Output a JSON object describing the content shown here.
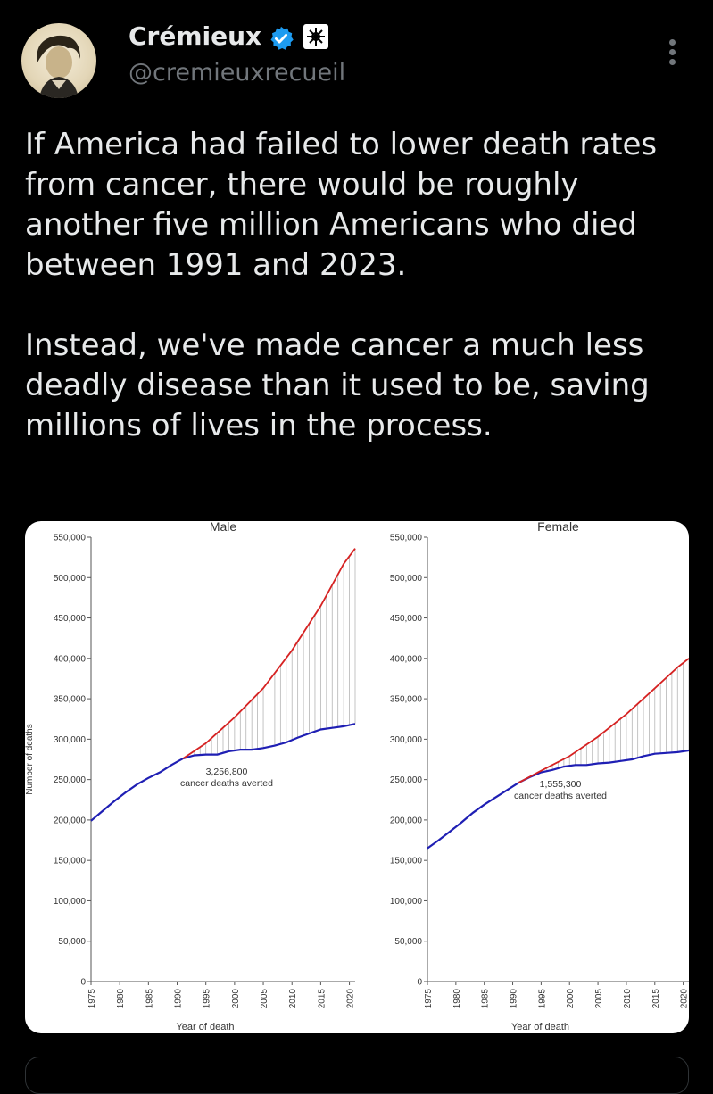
{
  "author": {
    "name": "Crémieux",
    "handle": "@cremieuxrecueil",
    "verified_color": "#1d9bf0"
  },
  "icons": {
    "more": "more-options-icon",
    "verified": "verified-badge-icon",
    "affiliation": "affiliation-badge-icon"
  },
  "tweet": {
    "paragraphs": [
      "If America had failed to lower death rates from cancer, there would be roughly another five million Americans who died between 1991 and 2023.",
      "Instead, we've made cancer a much less deadly disease than it used to be, saving millions of lives in the process."
    ]
  },
  "chart_data": [
    {
      "type": "line",
      "title": "Male",
      "xlabel": "Year of death",
      "ylabel": "Number of deaths",
      "xlim": [
        1975,
        2021
      ],
      "ylim": [
        0,
        550000
      ],
      "xticks": [
        1975,
        1980,
        1985,
        1990,
        1995,
        2000,
        2005,
        2010,
        2015,
        2020
      ],
      "yticks": [
        "0",
        "50,000",
        "100,000",
        "150,000",
        "200,000",
        "250,000",
        "300,000",
        "350,000",
        "400,000",
        "450,000",
        "500,000",
        "550,000"
      ],
      "annotation": [
        "3,256,800",
        "cancer deaths averted"
      ],
      "series": [
        {
          "color": "#1f1fb4",
          "x": [
            1975,
            1977,
            1979,
            1981,
            1983,
            1985,
            1987,
            1989,
            1990,
            1991,
            1993,
            1995,
            1997,
            1999,
            2001,
            2003,
            2005,
            2007,
            2009,
            2011,
            2013,
            2015,
            2017,
            2019,
            2021
          ],
          "y": [
            199000,
            211000,
            223000,
            234000,
            244000,
            252000,
            259000,
            268000,
            272000,
            276000,
            280000,
            281000,
            281000,
            285000,
            287000,
            287000,
            289000,
            292000,
            296000,
            302000,
            307000,
            312000,
            314000,
            316000,
            319000
          ]
        },
        {
          "color": "#d62222",
          "x": [
            1991,
            1995,
            2000,
            2005,
            2010,
            2015,
            2019,
            2021
          ],
          "y": [
            276000,
            295000,
            327000,
            363000,
            410000,
            465000,
            517000,
            536000
          ]
        }
      ]
    },
    {
      "type": "line",
      "title": "Female",
      "xlabel": "Year of death",
      "xlim": [
        1975,
        2021
      ],
      "ylim": [
        0,
        550000
      ],
      "xticks": [
        1975,
        1980,
        1985,
        1990,
        1995,
        2000,
        2005,
        2010,
        2015,
        2020
      ],
      "yticks": [
        "0",
        "50,000",
        "100,000",
        "150,000",
        "200,000",
        "250,000",
        "300,000",
        "350,000",
        "400,000",
        "450,000",
        "500,000",
        "550,000"
      ],
      "annotation": [
        "1,555,300",
        "cancer deaths averted"
      ],
      "series": [
        {
          "color": "#1f1fb4",
          "x": [
            1975,
            1977,
            1979,
            1981,
            1983,
            1985,
            1987,
            1989,
            1991,
            1993,
            1995,
            1997,
            1999,
            2001,
            2003,
            2005,
            2007,
            2009,
            2011,
            2013,
            2015,
            2017,
            2019,
            2021
          ],
          "y": [
            165000,
            175000,
            186000,
            197000,
            209000,
            219000,
            228000,
            237000,
            246000,
            253000,
            259000,
            262000,
            266000,
            268000,
            268000,
            270000,
            271000,
            273000,
            275000,
            279000,
            282000,
            283000,
            284000,
            286000
          ]
        },
        {
          "color": "#d62222",
          "x": [
            1991,
            1995,
            2000,
            2005,
            2010,
            2015,
            2019,
            2021
          ],
          "y": [
            246000,
            261000,
            279000,
            303000,
            331000,
            363000,
            389000,
            400000
          ]
        }
      ]
    }
  ]
}
